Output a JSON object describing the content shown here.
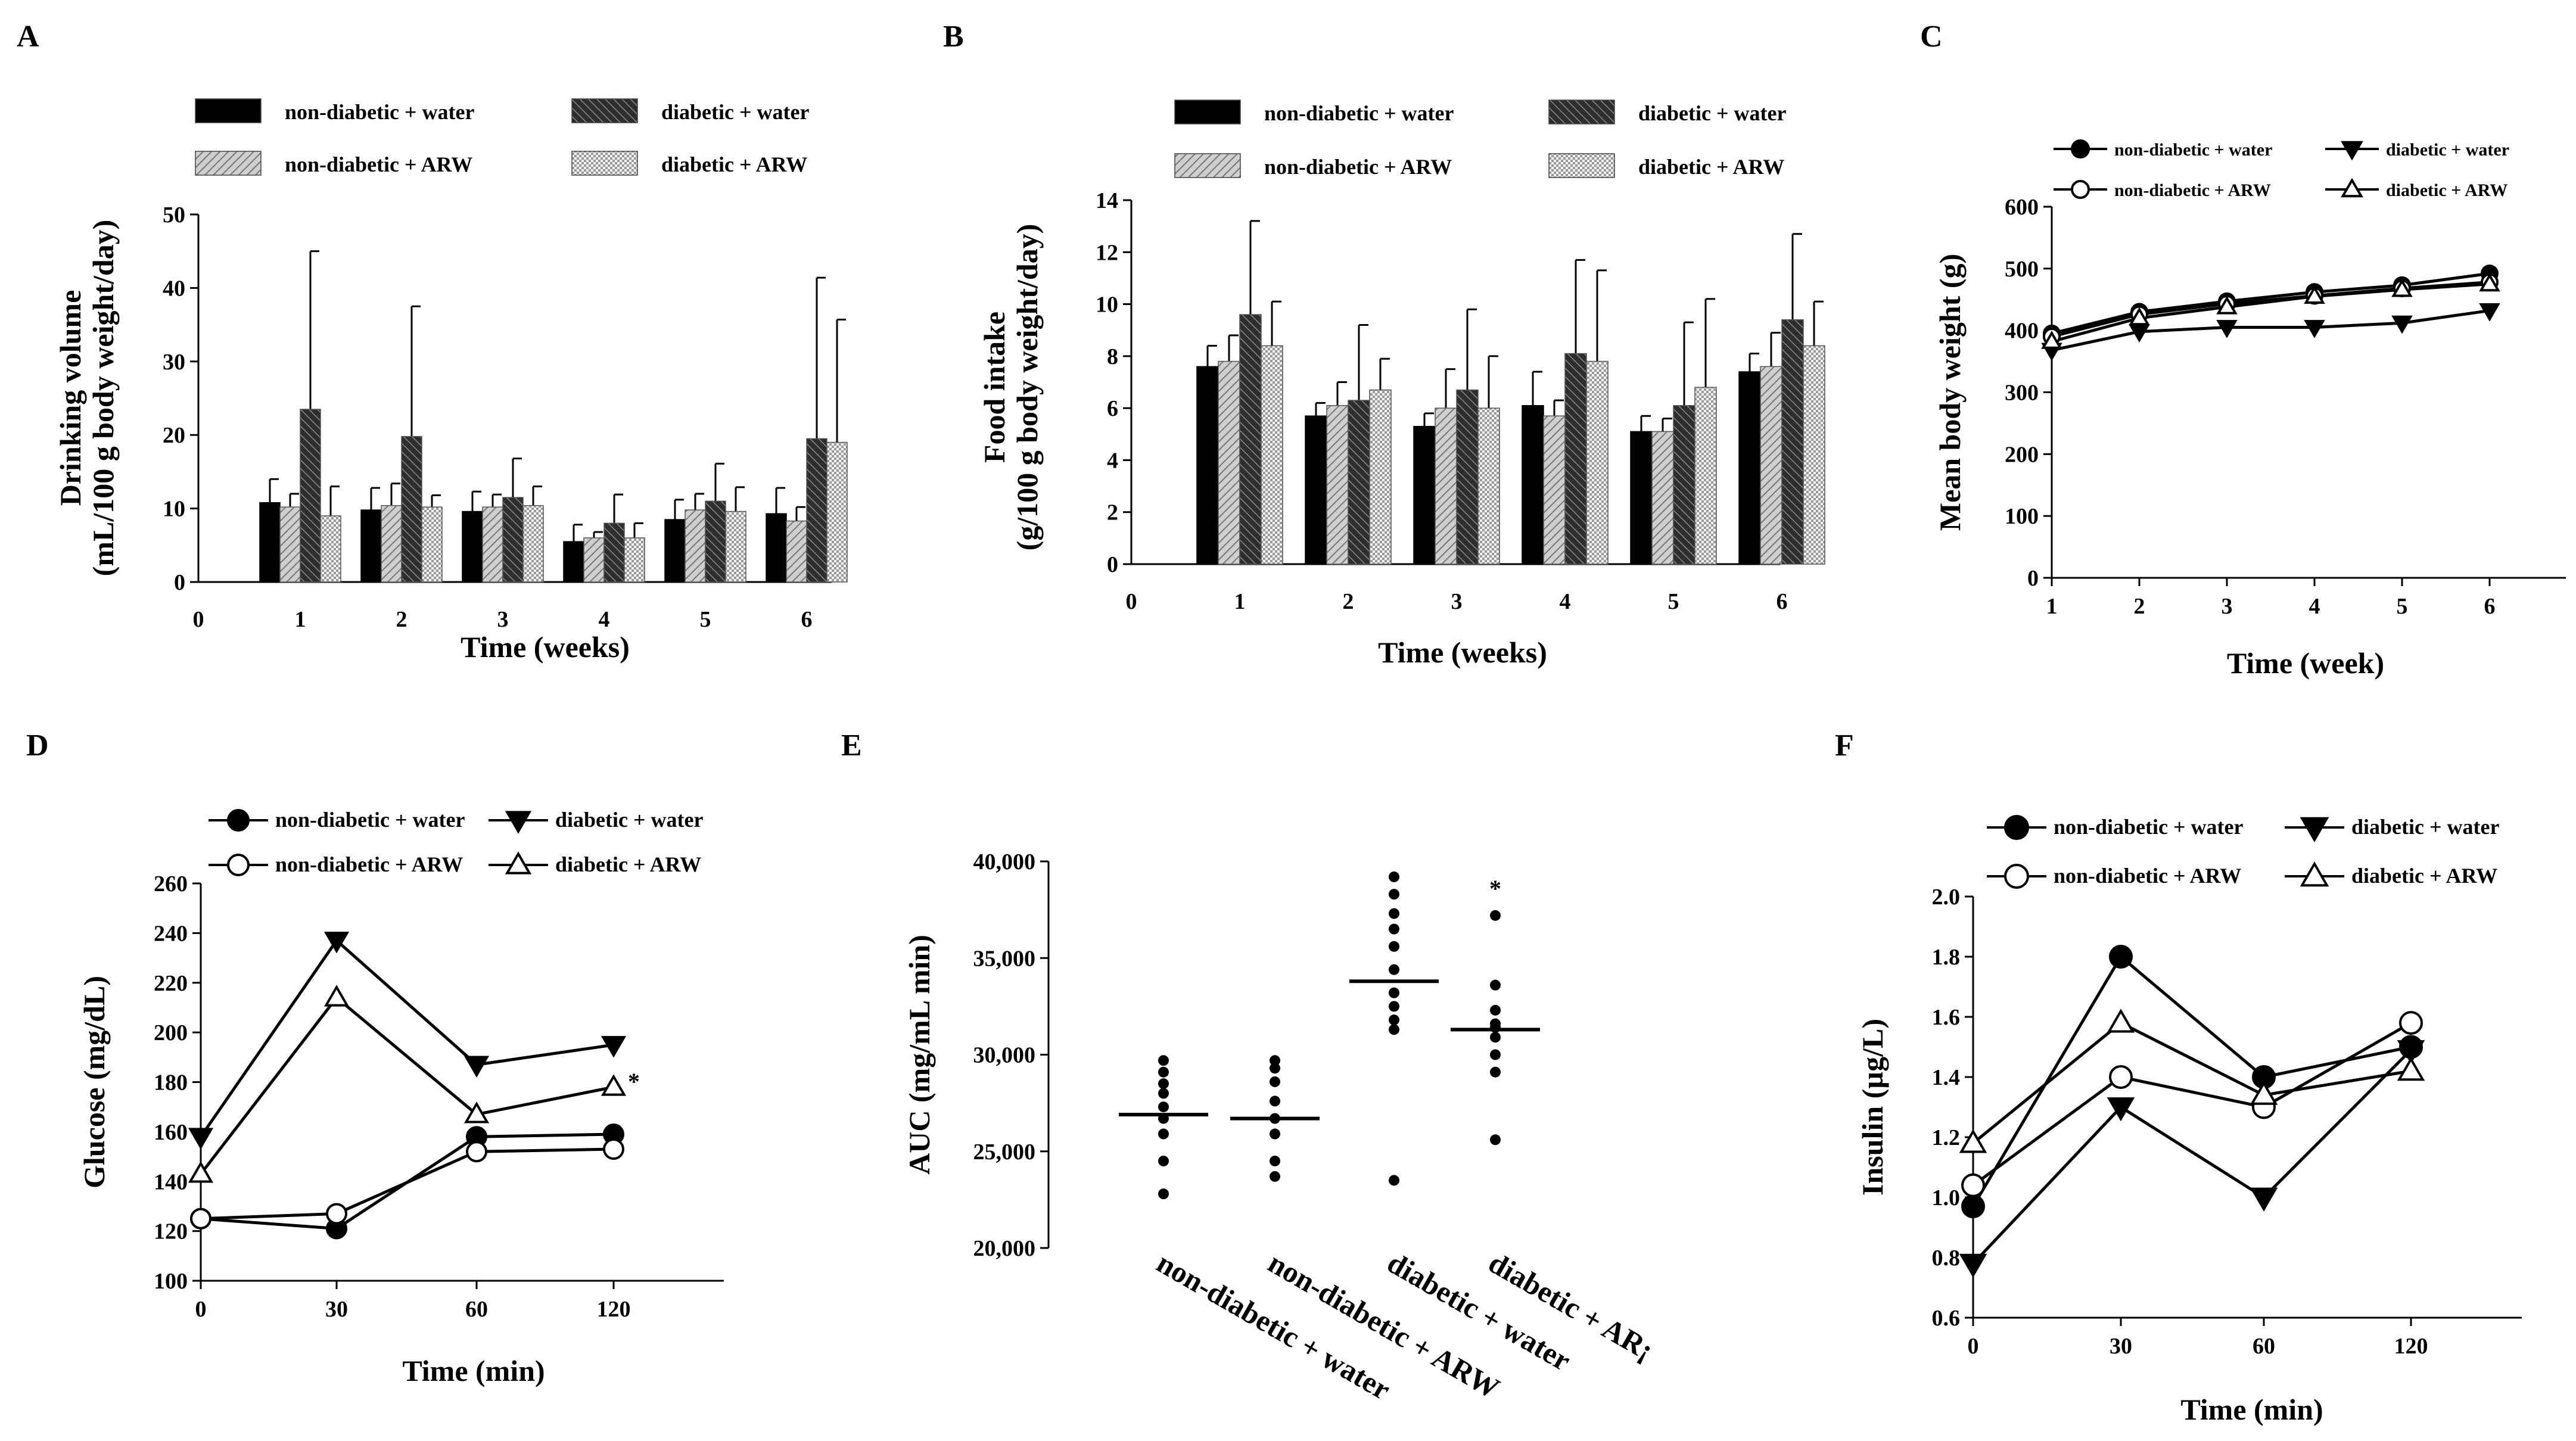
{
  "figure": {
    "panel_labels": [
      "A",
      "B",
      "C",
      "D",
      "E",
      "F"
    ]
  },
  "colors": {
    "black": "#000000",
    "dark_gray": "#5a5a5a",
    "light_gray": "#bfbfbf",
    "white": "#ffffff"
  },
  "chart_data": [
    {
      "id": "A",
      "type": "bar",
      "title": "",
      "xlabel": "Time  (weeks)",
      "ylabel": "Drinking volume (mL/100 g body weight/day)",
      "ylabel_lines": [
        "Drinking volume",
        "(mL/100  g body  weight/day)"
      ],
      "ylim": [
        0,
        50
      ],
      "yticks": [
        0,
        10,
        20,
        30,
        40,
        50
      ],
      "zero_tick": "0",
      "categories": [
        "1",
        "2",
        "3",
        "4",
        "5",
        "6"
      ],
      "legend_position": "top",
      "series": [
        {
          "name": "non-diabetic + water",
          "values": [
            10.8,
            9.8,
            9.6,
            5.5,
            8.5,
            9.3
          ],
          "errors": [
            3.2,
            3.0,
            2.7,
            2.3,
            2.7,
            3.5
          ]
        },
        {
          "name": "non-diabetic + ARW",
          "values": [
            10.2,
            10.4,
            10.2,
            6.0,
            9.8,
            8.3
          ],
          "errors": [
            1.8,
            3.0,
            1.7,
            0.8,
            2.2,
            1.9
          ]
        },
        {
          "name": "diabetic + water",
          "values": [
            23.5,
            19.8,
            11.5,
            8.0,
            11.0,
            19.5
          ],
          "errors": [
            21.5,
            17.7,
            5.3,
            3.9,
            5.1,
            21.9
          ]
        },
        {
          "name": "diabetic + ARW",
          "values": [
            9.0,
            10.2,
            10.4,
            6.0,
            9.6,
            19.0
          ],
          "errors": [
            4.0,
            1.6,
            2.6,
            2.0,
            3.3,
            16.7
          ]
        }
      ]
    },
    {
      "id": "B",
      "type": "bar",
      "title": "",
      "xlabel": "Time   (weeks)",
      "ylabel": "Food intake (g/100 g body weight/day)",
      "ylabel_lines": [
        "Food  intake",
        "(g/100 g body  weight/day)"
      ],
      "ylim": [
        0,
        14
      ],
      "yticks": [
        0,
        2,
        4,
        6,
        8,
        10,
        12,
        14
      ],
      "zero_tick": "0",
      "categories": [
        "1",
        "2",
        "3",
        "4",
        "5",
        "6"
      ],
      "legend_position": "top",
      "series": [
        {
          "name": "non-diabetic + water",
          "values": [
            7.6,
            5.7,
            5.3,
            6.1,
            5.1,
            7.4
          ],
          "errors": [
            0.8,
            0.5,
            0.5,
            1.3,
            0.6,
            0.7
          ]
        },
        {
          "name": "non-diabetic + ARW",
          "values": [
            7.8,
            6.1,
            6.0,
            5.7,
            5.1,
            7.6
          ],
          "errors": [
            1.0,
            0.9,
            1.5,
            0.6,
            0.5,
            1.3
          ]
        },
        {
          "name": "diabetic + water",
          "values": [
            9.6,
            6.3,
            6.7,
            8.1,
            6.1,
            9.4
          ],
          "errors": [
            3.6,
            2.9,
            3.1,
            3.6,
            3.2,
            3.3
          ]
        },
        {
          "name": "diabetic + ARW",
          "values": [
            8.4,
            6.7,
            6.0,
            7.8,
            6.8,
            8.4
          ],
          "errors": [
            1.7,
            1.2,
            2.0,
            3.5,
            3.4,
            1.7
          ]
        }
      ]
    },
    {
      "id": "C",
      "type": "line",
      "title": "",
      "xlabel": "Time (week)",
      "ylabel": "Mean body weight (g)",
      "x": [
        1,
        2,
        3,
        4,
        5,
        6
      ],
      "xticks": [
        "1",
        "2",
        "3",
        "4",
        "5",
        "6"
      ],
      "ylim": [
        0,
        600
      ],
      "yticks": [
        0,
        100,
        200,
        300,
        400,
        500,
        600
      ],
      "legend_position": "top",
      "series": [
        {
          "name": "non-diabetic + water",
          "marker": "filled-circle",
          "values": [
            395,
            430,
            447,
            462,
            473,
            492
          ]
        },
        {
          "name": "non-diabetic + ARW",
          "marker": "open-circle",
          "values": [
            390,
            426,
            443,
            456,
            468,
            478
          ]
        },
        {
          "name": "diabetic + water",
          "marker": "filled-triangle-down",
          "values": [
            368,
            398,
            405,
            405,
            412,
            432
          ]
        },
        {
          "name": "diabetic + ARW",
          "marker": "open-triangle-up",
          "values": [
            382,
            420,
            438,
            455,
            466,
            475
          ]
        }
      ]
    },
    {
      "id": "D",
      "type": "line",
      "title": "",
      "xlabel": "Time (min)",
      "ylabel": "Glucose (mg/dL)",
      "x": [
        0,
        30,
        60,
        120
      ],
      "xticks": [
        "0",
        "30",
        "60",
        "120"
      ],
      "ylim": [
        100,
        260
      ],
      "yticks": [
        100,
        120,
        140,
        160,
        180,
        200,
        220,
        240,
        260
      ],
      "legend_position": "top",
      "annotations": [
        {
          "text": "*",
          "series": "diabetic + ARW",
          "x": 120
        }
      ],
      "series": [
        {
          "name": "non-diabetic + water",
          "marker": "filled-circle",
          "values": [
            125,
            121,
            158,
            159
          ]
        },
        {
          "name": "non-diabetic + ARW",
          "marker": "open-circle",
          "values": [
            125,
            127,
            152,
            153
          ]
        },
        {
          "name": "diabetic + water",
          "marker": "filled-triangle-down",
          "values": [
            158,
            237,
            187,
            195
          ]
        },
        {
          "name": "diabetic + ARW",
          "marker": "open-triangle-up",
          "values": [
            143,
            214,
            167,
            178
          ]
        }
      ]
    },
    {
      "id": "E",
      "type": "scatter",
      "title": "",
      "xlabel": "",
      "ylabel": "AUC (mg/mL min)",
      "ylim": [
        20000,
        40000
      ],
      "yticks": [
        "20,000",
        "25,000",
        "30,000",
        "35,000",
        "40,000"
      ],
      "ytick_values": [
        20000,
        25000,
        30000,
        35000,
        40000
      ],
      "categories": [
        "non-diabetic + water",
        "non-diabetic + ARW",
        "diabetic + water",
        "diabetic + AR¡"
      ],
      "means": [
        26900,
        26700,
        33800,
        31300
      ],
      "annotations": [
        {
          "text": "*",
          "category": 3
        }
      ],
      "points": [
        [
          22800,
          24500,
          25900,
          26700,
          27300,
          28000,
          28500,
          29100,
          29700
        ],
        [
          23700,
          24500,
          25900,
          26700,
          27600,
          28600,
          29300,
          29700
        ],
        [
          23500,
          31300,
          31800,
          32500,
          33200,
          34400,
          35600,
          36500,
          37300,
          38300,
          39200
        ],
        [
          25600,
          29100,
          30000,
          30900,
          31400,
          31600,
          32300,
          33600,
          37200
        ]
      ]
    },
    {
      "id": "F",
      "type": "line",
      "title": "",
      "xlabel": "Time (min)",
      "ylabel": "Insulin (µg/L)",
      "x": [
        0,
        30,
        60,
        120
      ],
      "xticks": [
        "0",
        "30",
        "60",
        "120"
      ],
      "ylim": [
        0.6,
        2.0
      ],
      "yticks": [
        "0.6",
        "0.8",
        "1.0",
        "1.2",
        "1.4",
        "1.6",
        "1.8",
        "2.0"
      ],
      "ytick_values": [
        0.6,
        0.8,
        1.0,
        1.2,
        1.4,
        1.6,
        1.8,
        2.0
      ],
      "legend_position": "top",
      "series": [
        {
          "name": "non-diabetic + water",
          "marker": "filled-circle",
          "values": [
            0.97,
            1.8,
            1.4,
            1.5
          ]
        },
        {
          "name": "non-diabetic + ARW",
          "marker": "open-circle",
          "values": [
            1.04,
            1.4,
            1.3,
            1.58
          ]
        },
        {
          "name": "diabetic + water",
          "marker": "filled-triangle-down",
          "values": [
            0.78,
            1.3,
            1.0,
            1.49
          ]
        },
        {
          "name": "diabetic + ARW",
          "marker": "open-triangle-up",
          "values": [
            1.18,
            1.58,
            1.34,
            1.42
          ]
        }
      ]
    }
  ]
}
